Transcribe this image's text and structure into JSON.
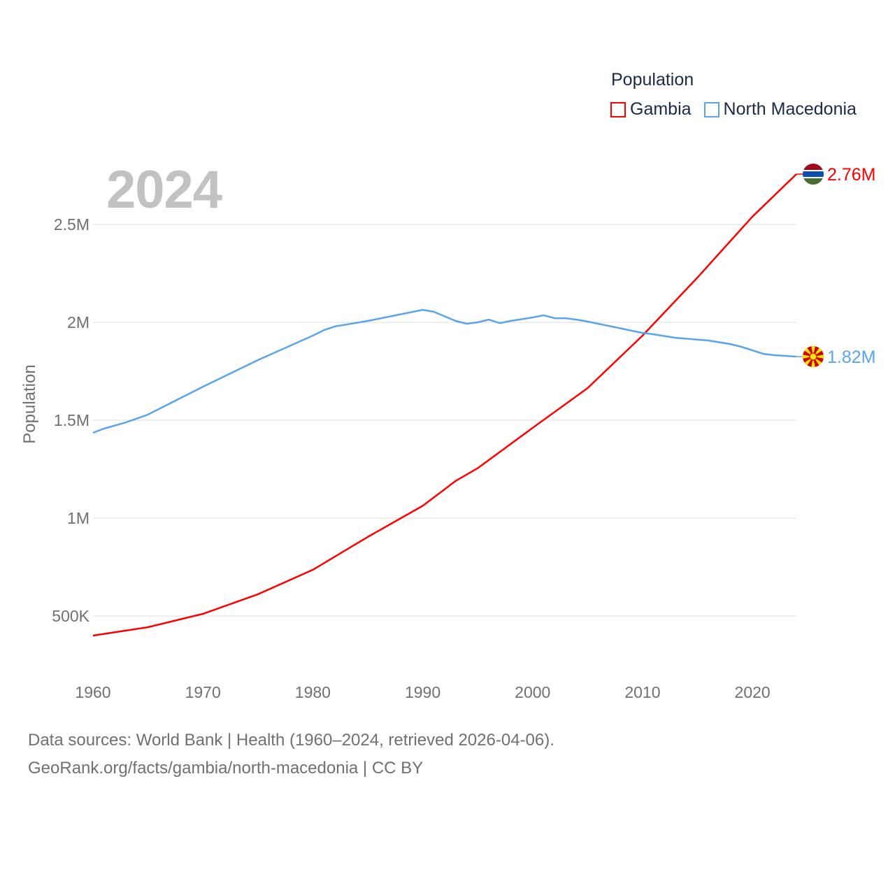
{
  "legend": {
    "title": "Population",
    "items": [
      "Gambia",
      "North Macedonia"
    ]
  },
  "year_label": "2024",
  "footer": {
    "line1": "Data sources: World Bank | Health (1960–2024, retrieved 2026-04-06).",
    "line2": "GeoRank.org/facts/gambia/north-macedonia | CC BY"
  },
  "chart_data": {
    "type": "line",
    "title": "",
    "xlabel": "",
    "ylabel": "Population",
    "xlim": [
      1960,
      2024
    ],
    "ylim": [
      0,
      2800000
    ],
    "grid": true,
    "legend_placement": "top-right",
    "x_ticks": [
      1960,
      1970,
      1980,
      1990,
      2000,
      2010,
      2020
    ],
    "x_tick_labels": [
      "1960",
      "1970",
      "1980",
      "1990",
      "2000",
      "2010",
      "2020"
    ],
    "y_ticks": [
      500000,
      1000000,
      1500000,
      2000000,
      2500000
    ],
    "y_tick_labels": [
      "500K",
      "1M",
      "1.5M",
      "2M",
      "2.5M"
    ],
    "series": [
      {
        "name": "Gambia",
        "color": "#ff0000",
        "end_label": "2.76M",
        "flag": "gambia-flag",
        "points": [
          [
            1960,
            400000
          ],
          [
            1965,
            443000
          ],
          [
            1970,
            511000
          ],
          [
            1975,
            611000
          ],
          [
            1980,
            736000
          ],
          [
            1985,
            904000
          ],
          [
            1990,
            1063000
          ],
          [
            1993,
            1190000
          ],
          [
            1995,
            1255000
          ],
          [
            2000,
            1461000
          ],
          [
            2005,
            1664000
          ],
          [
            2010,
            1932000
          ],
          [
            2015,
            2229000
          ],
          [
            2020,
            2540000
          ],
          [
            2024,
            2757000
          ]
        ]
      },
      {
        "name": "North Macedonia",
        "color": "#5aa5ea",
        "end_label": "1.82M",
        "flag": "north-macedonia-flag",
        "points": [
          [
            1960,
            1436000
          ],
          [
            1961,
            1457000
          ],
          [
            1963,
            1489000
          ],
          [
            1965,
            1529000
          ],
          [
            1970,
            1671000
          ],
          [
            1975,
            1807000
          ],
          [
            1980,
            1932000
          ],
          [
            1981,
            1960000
          ],
          [
            1982,
            1979000
          ],
          [
            1985,
            2007000
          ],
          [
            1990,
            2064000
          ],
          [
            1991,
            2054000
          ],
          [
            1993,
            2007000
          ],
          [
            1994,
            1993000
          ],
          [
            1995,
            2000000
          ],
          [
            1996,
            2014000
          ],
          [
            1997,
            1996000
          ],
          [
            1998,
            2007000
          ],
          [
            2000,
            2025000
          ],
          [
            2001,
            2036000
          ],
          [
            2002,
            2021000
          ],
          [
            2003,
            2021000
          ],
          [
            2004,
            2014000
          ],
          [
            2005,
            2004000
          ],
          [
            2010,
            1946000
          ],
          [
            2011,
            1939000
          ],
          [
            2013,
            1921000
          ],
          [
            2016,
            1907000
          ],
          [
            2018,
            1889000
          ],
          [
            2019,
            1875000
          ],
          [
            2021,
            1839000
          ],
          [
            2022,
            1832000
          ],
          [
            2024,
            1825000
          ]
        ]
      }
    ]
  }
}
